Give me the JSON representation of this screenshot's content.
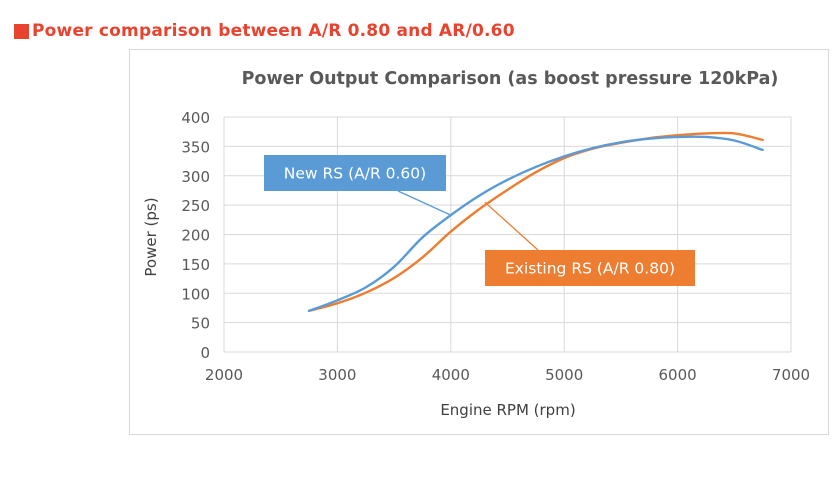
{
  "heading": "Power comparison between A/R 0.80 and AR/0.60",
  "colors": {
    "heading_red": "#e8432f",
    "new_rs_blue": "#5b9bd5",
    "existing_rs_orange": "#ed7d31"
  },
  "chart_data": {
    "type": "line",
    "title": "Power Output Comparison (as boost pressure 120kPa)",
    "xlabel": "Engine RPM (rpm)",
    "ylabel": "Power (ps)",
    "xlim": [
      2000,
      7000
    ],
    "ylim": [
      0,
      400
    ],
    "x_ticks": [
      "2000",
      "3000",
      "4000",
      "5000",
      "6000",
      "7000"
    ],
    "y_ticks": [
      "0",
      "50",
      "100",
      "150",
      "200",
      "250",
      "300",
      "350",
      "400"
    ],
    "grid": true,
    "series": [
      {
        "name": "New RS (A/R 0.60)",
        "color": "#5b9bd5",
        "x": [
          2750,
          3000,
          3250,
          3500,
          3750,
          4000,
          4250,
          4500,
          4750,
          5000,
          5250,
          5500,
          5750,
          6000,
          6250,
          6500,
          6750
        ],
        "y": [
          70,
          88,
          110,
          145,
          195,
          233,
          266,
          293,
          315,
          333,
          347,
          357,
          363,
          366,
          366,
          360,
          344
        ]
      },
      {
        "name": "Existing RS (A/R 0.80)",
        "color": "#ed7d31",
        "x": [
          2750,
          3000,
          3250,
          3500,
          3750,
          4000,
          4250,
          4500,
          4750,
          5000,
          5250,
          5500,
          5750,
          6000,
          6250,
          6500,
          6750
        ],
        "y": [
          70,
          83,
          101,
          126,
          161,
          205,
          243,
          276,
          306,
          330,
          346,
          356,
          364,
          369,
          372,
          372,
          361
        ]
      }
    ],
    "annotations": [
      {
        "text": "New RS (A/R 0.60)",
        "series": 0,
        "points_to": [
          4000,
          233
        ]
      },
      {
        "text": "Existing RS (A/R 0.80)",
        "series": 1,
        "points_to": [
          4300,
          255
        ]
      }
    ]
  }
}
